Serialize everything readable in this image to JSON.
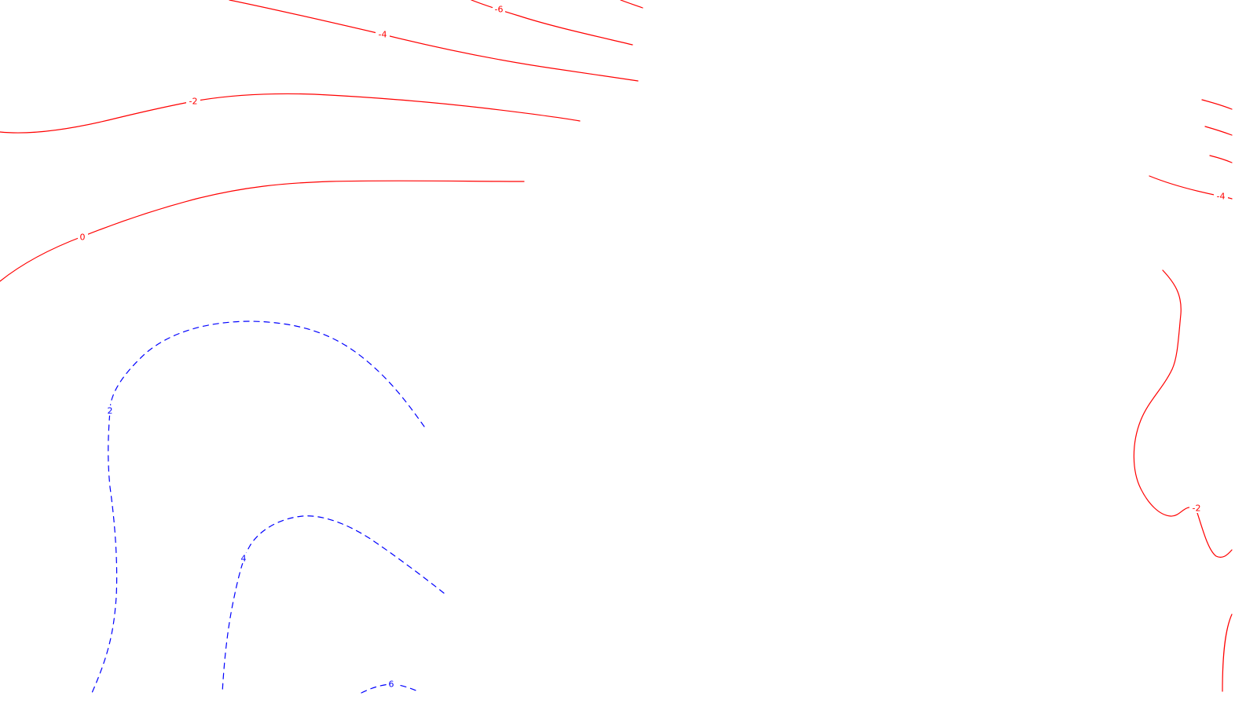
{
  "map": {
    "type": "contour-map",
    "colors": {
      "negative": "#ff0000",
      "positive": "#0000ff",
      "background": "#ffffff"
    },
    "line_styles": {
      "negative": "solid",
      "positive": "dashed"
    },
    "contours": [
      {
        "id": "neg6-a",
        "value": "-6",
        "sign": "negative",
        "label_text": "-6"
      },
      {
        "id": "neg6-b",
        "value": "-6",
        "sign": "negative",
        "label_text": ""
      },
      {
        "id": "neg4-a",
        "value": "-4",
        "sign": "negative",
        "label_text": "-4"
      },
      {
        "id": "neg2-a",
        "value": "-2",
        "sign": "negative",
        "label_text": "-2"
      },
      {
        "id": "zero-a",
        "value": "0",
        "sign": "negative",
        "label_text": "0"
      },
      {
        "id": "right-a",
        "value": "",
        "sign": "negative",
        "label_text": ""
      },
      {
        "id": "right-b",
        "value": "",
        "sign": "negative",
        "label_text": ""
      },
      {
        "id": "right-c",
        "value": "",
        "sign": "negative",
        "label_text": ""
      },
      {
        "id": "neg4-b",
        "value": "-4",
        "sign": "negative",
        "label_text": "-4"
      },
      {
        "id": "neg2-b",
        "value": "-2",
        "sign": "negative",
        "label_text": "-2"
      },
      {
        "id": "right-d",
        "value": "",
        "sign": "negative",
        "label_text": ""
      },
      {
        "id": "pos2-a",
        "value": "2",
        "sign": "positive",
        "label_text": "2"
      },
      {
        "id": "pos4-a",
        "value": "4",
        "sign": "positive",
        "label_text": "4"
      },
      {
        "id": "pos6-a",
        "value": "6",
        "sign": "positive",
        "label_text": "6"
      }
    ]
  }
}
